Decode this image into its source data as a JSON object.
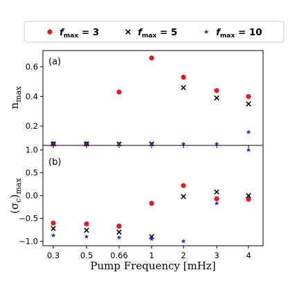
{
  "chart_data": {
    "type": "scatter",
    "legend": {
      "placement": "top",
      "entries": [
        {
          "label_main": "f",
          "label_sub": "max",
          "label_value": " = 3",
          "marker": "circle",
          "color": "#e8191b"
        },
        {
          "label_main": "f",
          "label_sub": "max",
          "label_value": " = 5",
          "marker": "x",
          "color": "#000000"
        },
        {
          "label_main": "f",
          "label_sub": "max",
          "label_value": " = 10",
          "marker": "star",
          "color": "#1f2bd6"
        }
      ]
    },
    "x_categories": [
      "0.3",
      "0.5",
      "0.66",
      "1",
      "2",
      "3",
      "4"
    ],
    "xlabel": "Pump Frequency [mHz]",
    "panels": [
      {
        "id": "a",
        "label": "(a)",
        "ylabel_main": "n",
        "ylabel_sub": "max",
        "ylim": [
          0.07,
          0.71
        ],
        "yticks": [
          0.2,
          0.4,
          0.6
        ],
        "ytick_labels": [
          "0.2",
          "0.4",
          "0.6"
        ],
        "series": [
          {
            "name": "f_max = 3",
            "values": [
              0.08,
              0.08,
              0.43,
              0.66,
              0.53,
              0.44,
              0.4
            ]
          },
          {
            "name": "f_max = 5",
            "values": [
              0.08,
              0.08,
              0.08,
              0.08,
              0.46,
              0.39,
              0.35
            ]
          },
          {
            "name": "f_max = 10",
            "values": [
              0.08,
              0.08,
              0.08,
              0.08,
              0.08,
              0.08,
              0.16
            ]
          }
        ]
      },
      {
        "id": "b",
        "label": "(b)",
        "ylabel_main": "(σ",
        "ylabel_sub": "c",
        "ylabel_end": ")",
        "ylabel_sub2": "max",
        "ylim": [
          -1.1,
          1.1
        ],
        "yticks": [
          -1.0,
          -0.5,
          0.0,
          0.5,
          1.0
        ],
        "ytick_labels": [
          "−1.0",
          "−0.5",
          "0.0",
          "0.5",
          "1.0"
        ],
        "series": [
          {
            "name": "f_max = 3",
            "values": [
              -0.6,
              -0.62,
              -0.67,
              -0.17,
              0.22,
              -0.07,
              -0.08
            ]
          },
          {
            "name": "f_max = 5",
            "values": [
              -0.72,
              -0.76,
              -0.8,
              -0.9,
              -0.02,
              0.08,
              0.0
            ]
          },
          {
            "name": "f_max = 10",
            "values": [
              -0.87,
              -0.9,
              -0.92,
              -0.95,
              -1.0,
              -0.17,
              1.0
            ]
          }
        ]
      }
    ]
  }
}
